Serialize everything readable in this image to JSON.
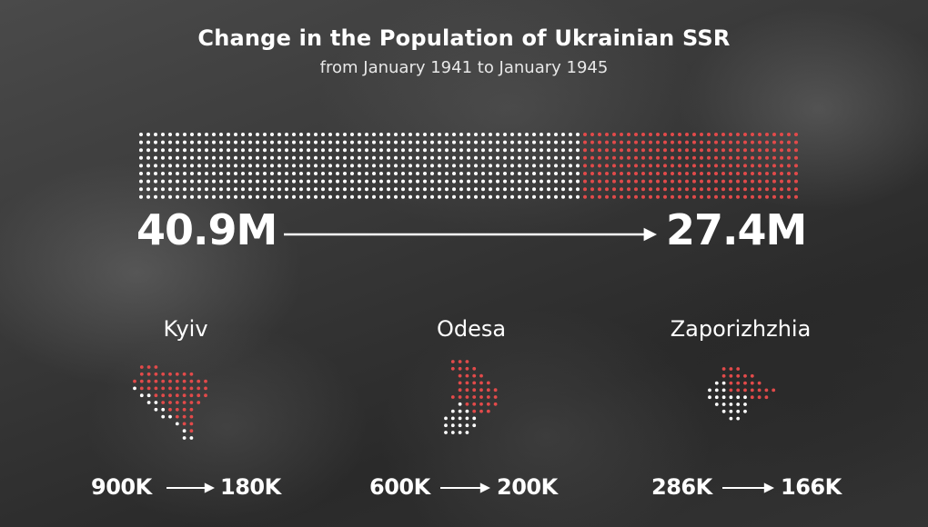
{
  "title": "Change in the Population of Ukrainian SSR",
  "subtitle": "from January 1941 to January 1945",
  "colors": {
    "before": "#ffffff",
    "lost": "#e24a4a"
  },
  "chart_data": [
    {
      "type": "dot-matrix",
      "series": [
        {
          "name": "Ukrainian SSR",
          "start_label": "40.9M",
          "end_label": "27.4M",
          "start_value": 40.9,
          "end_value": 27.4
        }
      ]
    },
    {
      "type": "dot-map",
      "cities": [
        {
          "name": "Kyiv",
          "start_label": "900K",
          "end_label": "180K",
          "start_value": 900,
          "end_value": 180
        },
        {
          "name": "Odesa",
          "start_label": "600K",
          "end_label": "200K",
          "start_value": 600,
          "end_value": 200
        },
        {
          "name": "Zaporizhzhia",
          "start_label": "286K",
          "end_label": "166K",
          "start_value": 286,
          "end_value": 166
        }
      ]
    }
  ]
}
